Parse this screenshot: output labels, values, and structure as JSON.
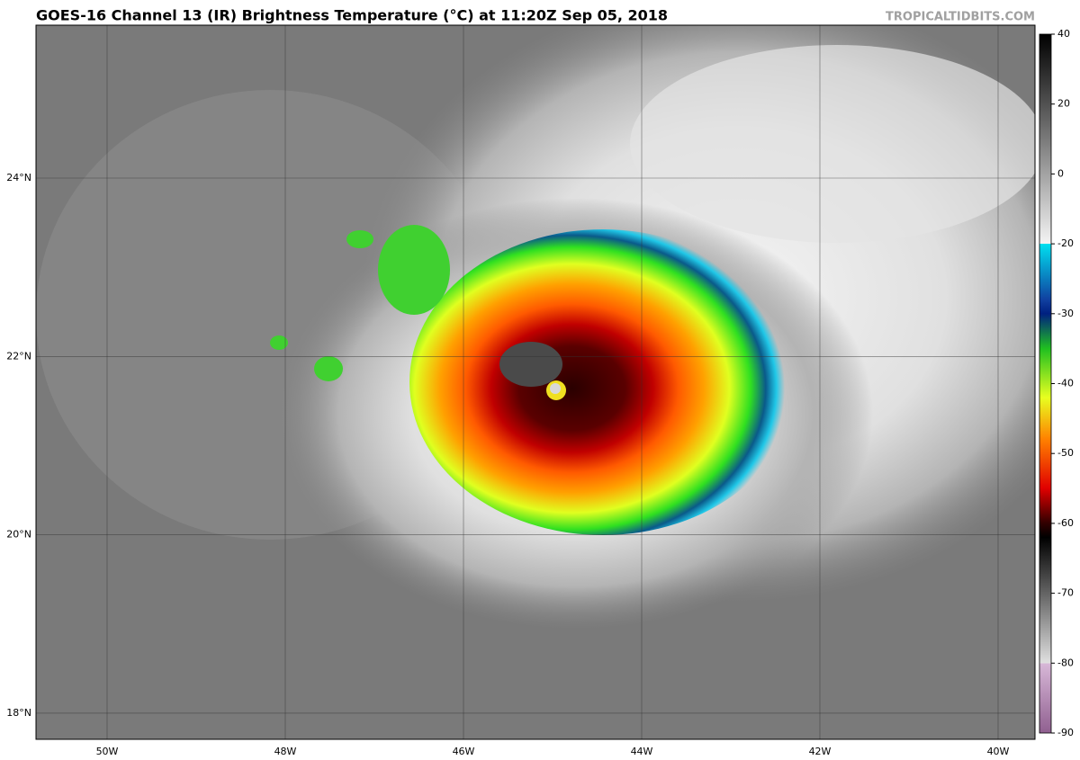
{
  "header": {
    "title": "GOES-16 Channel 13 (IR) Brightness Temperature (°C) at 11:20Z Sep 05, 2018",
    "credit": "TROPICALTIDBITS.COM"
  },
  "map": {
    "latitude_labels": [
      "24°N",
      "22°N",
      "20°N",
      "18°N"
    ],
    "longitude_labels": [
      "50W",
      "48W",
      "46W",
      "44W",
      "42W",
      "40W"
    ]
  },
  "colorbar": {
    "ticks": [
      40,
      20,
      0,
      -20,
      -30,
      -40,
      -50,
      -60,
      -70,
      -80,
      -90
    ]
  }
}
